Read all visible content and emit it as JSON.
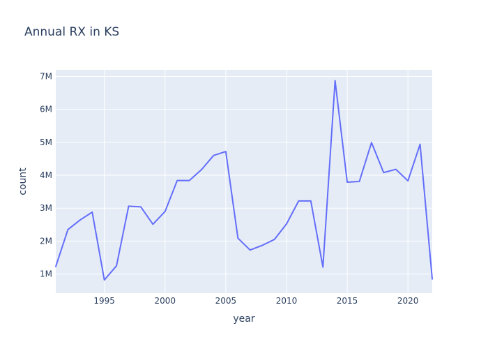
{
  "chart_data": {
    "type": "line",
    "title": "Annual RX in KS",
    "xlabel": "year",
    "ylabel": "count",
    "xlim": [
      1991,
      2022
    ],
    "ylim": [
      420000,
      7200000
    ],
    "x_ticks": [
      1995,
      2000,
      2005,
      2010,
      2015,
      2020
    ],
    "x_tick_labels": [
      "1995",
      "2000",
      "2005",
      "2010",
      "2015",
      "2020"
    ],
    "y_ticks": [
      1000000,
      2000000,
      3000000,
      4000000,
      5000000,
      6000000,
      7000000
    ],
    "y_tick_labels": [
      "1M",
      "2M",
      "3M",
      "4M",
      "5M",
      "6M",
      "7M"
    ],
    "grid": true,
    "legend": "none",
    "background_color": "#e5ecf6",
    "grid_color": "#ffffff",
    "series": [
      {
        "color": "#636efa",
        "x": [
          1991,
          1992,
          1993,
          1994,
          1995,
          1996,
          1997,
          1998,
          1999,
          2000,
          2001,
          2002,
          2003,
          2004,
          2005,
          2006,
          2007,
          2008,
          2009,
          2010,
          2011,
          2012,
          2013,
          2014,
          2015,
          2016,
          2017,
          2018,
          2019,
          2020,
          2021,
          2022
        ],
        "values": [
          1230000,
          2350000,
          2640000,
          2880000,
          820000,
          1250000,
          3060000,
          3040000,
          2510000,
          2900000,
          3840000,
          3840000,
          4170000,
          4600000,
          4720000,
          2090000,
          1730000,
          1870000,
          2050000,
          2520000,
          3220000,
          3220000,
          1210000,
          6870000,
          3790000,
          3810000,
          4990000,
          4080000,
          4180000,
          3830000,
          4940000,
          850000
        ]
      }
    ]
  }
}
